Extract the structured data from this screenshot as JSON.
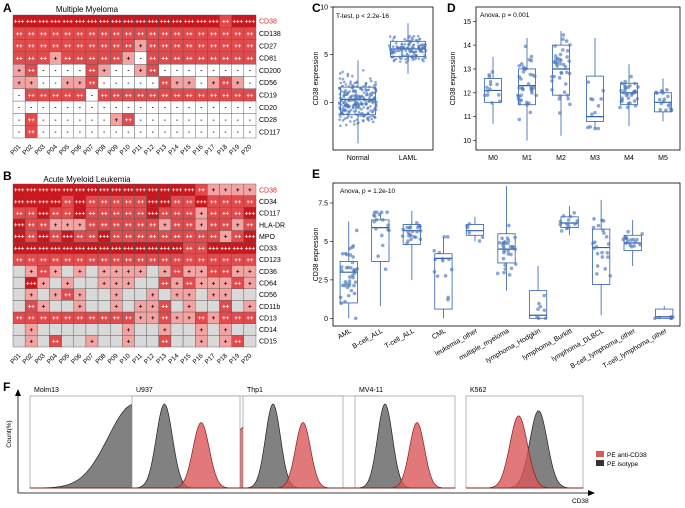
{
  "panels": {
    "A": {
      "letter": "A",
      "title": "Multiple Myeloma",
      "rows": [
        "CD38",
        "CD138",
        "CD27",
        "CD81",
        "CD200",
        "CD56",
        "CD19",
        "CD20",
        "CD28",
        "CD117"
      ],
      "highlight_row": "CD38",
      "cols": [
        "P01",
        "P02",
        "P03",
        "P04",
        "P05",
        "P06",
        "P07",
        "P08",
        "P09",
        "P10",
        "P11",
        "P12",
        "P13",
        "P14",
        "P15",
        "P16",
        "P17",
        "P18",
        "P19",
        "P20"
      ],
      "cells": [
        "+++ +++ +++ +++ +++ +++ +++ +++ +++ +++ +++ +++ +++ +++ +++ +++ +++ ++ +++ +++",
        "++ ++ ++ ++ ++ ++ ++ ++ ++ ++ ++ ++ ++ ++ ++ ++ ++ ++ ++ ++",
        "++ ++ ++ ++ ++ ++ ++ ++ ++ ++ + ++ ++ ++ ++ ++ ++ ++ ++ ++",
        "++ ++ ++ + ++ ++ ++ ++ ++ + - ++ ++ ++ ++ ++ ++ ++ ++ ++",
        "+ ++ - - - - ++ + - - + ++ - - - - - - - -",
        "+ + - - + + ++ - - - - - ++ + + - + ++ + -",
        "- ++ ++ ++ ++ ++ - ++ ++ ++ ++ ++ ++ ++ ++ ++ ++ ++ ++ ++",
        "- - - - - - - - - - - - - - - - - - - -",
        "- ++ - - - - - - + ++ - - - - - - - - - -",
        "- ++ - - - - - - - - - - - - - - - - - -"
      ]
    },
    "B": {
      "letter": "B",
      "title": "Acute Myeloid Leukemia",
      "rows": [
        "CD38",
        "CD34",
        "CD117",
        "HLA-DR",
        "MPO",
        "CD33",
        "CD123",
        "CD36",
        "CD64",
        "CD56",
        "CD11b",
        "CD13",
        "CD14",
        "CD15"
      ],
      "highlight_row": "CD38",
      "cols": [
        "P01",
        "P02",
        "P03",
        "P04",
        "P05",
        "P06",
        "P07",
        "P08",
        "P09",
        "P10",
        "P11",
        "P12",
        "P13",
        "P14",
        "P15",
        "P16",
        "P17",
        "P18",
        "P19",
        "P20"
      ],
      "cells": [
        "+++ +++ +++ +++ +++ +++ +++ +++ +++ +++ +++ +++ +++ +++ +++ ++ + + + +",
        "+++ +++ +++ +++ ++ +++ ++ ++ ++ ++ ++ +++ +++ ++ ++ +++ ++ ++ ++ ++",
        "++ ++ +++ ++ ++ +++ ++ ++ ++ ++ ++ +++ ++ ++ ++ + ++ ++ ++ +++",
        "+++ ++ ++ + + + ++ ++ ++ ++ ++ ++ + ++ ++ + ++ ++ + ++",
        "+++ ++ +++ ++ +++ ++ ++ +++ ++ ++ ++ ++ ++ ++ ++ ++ ++ + ++ +++",
        "+++ +++ +++ +++ +++ +++ +++ +++ +++ +++ +++ +++ +++ +++ ++ ++ +++ +++ +++ +++",
        "++ ++ ++ ++ ++ ++ ++ ++ ++ ++ ++ ++ ++ ++ ++ ++ ++ ++ ++ ++",
        "n + ++ + n + n + + + + n + ++ + + ++ ++ + +",
        "n +++ + n + n n + + + n n ++ + ++ + + + ++ +",
        "n + n + ++ + n n + n n + n + + n + + n n",
        "n ++ + n n + n n + n + + ++ n + n n ++ n +",
        "++ ++ ++ ++ ++ ++ ++ ++ ++ ++ + + ++ + + ++ + ++ ++ ++",
        "n + n n n n n n n + n n + n n + n + n n",
        "n + n ++ n n + n n + n n ++ n n + n + ++ n"
      ]
    },
    "C": {
      "letter": "C",
      "annotation": "T-test, p < 2.2e-16"
    },
    "D": {
      "letter": "D",
      "annotation": "Anova, p = 0.001"
    },
    "E": {
      "letter": "E",
      "annotation": "Anova, p = 1.2e-10"
    },
    "F": {
      "letter": "F",
      "ylabel": "Count(%)",
      "xlabel": "CD38",
      "cells": [
        "Molm13",
        "U937",
        "Thp1",
        "MV4-11",
        "K562"
      ],
      "legend": [
        "PE anti-CD38",
        "PE isotype"
      ]
    }
  },
  "chart_data": [
    {
      "type": "scatter",
      "panel": "C",
      "title": "",
      "xlabel": "",
      "ylabel": "CD38 expression",
      "categories": [
        "Normal",
        "LAML"
      ],
      "ylim": [
        -5,
        10
      ],
      "yticks": [
        0,
        5,
        10
      ],
      "summary": [
        {
          "name": "Normal",
          "median": 0.3,
          "q1": -1.3,
          "q3": 1.6,
          "min": -4.3,
          "max": 4.4
        },
        {
          "name": "LAML",
          "median": 5.6,
          "q1": 4.8,
          "q3": 6.4,
          "min": 3.0,
          "max": 8.3
        }
      ]
    },
    {
      "type": "box",
      "panel": "D",
      "xlabel": "",
      "ylabel": "CD38 expression",
      "categories": [
        "M0",
        "M1",
        "M2",
        "M3",
        "M4",
        "M5"
      ],
      "ylim": [
        9.6,
        15.6
      ],
      "yticks": [
        10,
        11,
        12,
        13,
        14,
        15
      ],
      "summary": [
        {
          "name": "M0",
          "median": 12.1,
          "q1": 11.6,
          "q3": 12.6,
          "min": 10.7,
          "max": 13.5
        },
        {
          "name": "M1",
          "median": 12.3,
          "q1": 11.5,
          "q3": 13.0,
          "min": 10.0,
          "max": 14.3
        },
        {
          "name": "M2",
          "median": 13.0,
          "q1": 11.9,
          "q3": 14.0,
          "min": 10.2,
          "max": 14.6
        },
        {
          "name": "M3",
          "median": 11.0,
          "q1": 10.8,
          "q3": 12.7,
          "min": 10.5,
          "max": 14.3
        },
        {
          "name": "M4",
          "median": 12.0,
          "q1": 11.5,
          "q3": 12.4,
          "min": 10.6,
          "max": 13.2
        },
        {
          "name": "M5",
          "median": 11.6,
          "q1": 11.2,
          "q3": 12.0,
          "min": 10.8,
          "max": 12.6
        }
      ]
    },
    {
      "type": "box",
      "panel": "E",
      "xlabel": "",
      "ylabel": "CD38 expression",
      "categories": [
        "AML",
        "B-cell_ALL",
        "T-cell_ALL",
        "CML",
        "leukemia_other",
        "multiple_myeloma",
        "lymphoma_Hodgkin",
        "lymphoma_Burkitt",
        "lymphoma_DLBCL",
        "B-cell_lymphoma_other",
        "T-cell_lymphoma_other"
      ],
      "ylim": [
        -0.5,
        8.8
      ],
      "yticks": [
        0,
        2.5,
        5,
        7.5
      ],
      "summary": [
        {
          "name": "AML",
          "median": 3.0,
          "q1": 1.0,
          "q3": 3.7,
          "min": 0,
          "max": 6.3
        },
        {
          "name": "B-cell_ALL",
          "median": 5.9,
          "q1": 3.7,
          "q3": 6.4,
          "min": 0.8,
          "max": 6.9
        },
        {
          "name": "T-cell_ALL",
          "median": 5.7,
          "q1": 4.8,
          "q3": 6.1,
          "min": 2.5,
          "max": 7.0
        },
        {
          "name": "CML",
          "median": 3.9,
          "q1": 0.6,
          "q3": 4.2,
          "min": 0,
          "max": 5.3
        },
        {
          "name": "leukemia_other",
          "median": 5.7,
          "q1": 5.4,
          "q3": 6.1,
          "min": 5.0,
          "max": 6.6
        },
        {
          "name": "multiple_myeloma",
          "median": 4.5,
          "q1": 3.6,
          "q3": 5.5,
          "min": 1.8,
          "max": 8.6
        },
        {
          "name": "lymphoma_Hodgkin",
          "median": 0.2,
          "q1": 0.0,
          "q3": 1.8,
          "min": 0,
          "max": 3.4
        },
        {
          "name": "lymphoma_Burkitt",
          "median": 6.2,
          "q1": 5.9,
          "q3": 6.6,
          "min": 5.4,
          "max": 7.3
        },
        {
          "name": "lymphoma_DLBCL",
          "median": 4.6,
          "q1": 2.2,
          "q3": 5.8,
          "min": 0.2,
          "max": 7.7
        },
        {
          "name": "B-cell_lymphoma_other",
          "median": 4.9,
          "q1": 4.4,
          "q3": 5.4,
          "min": 3.4,
          "max": 6.4
        },
        {
          "name": "T-cell_lymphoma_other",
          "median": 0.1,
          "q1": 0.0,
          "q3": 0.6,
          "min": 0,
          "max": 0.8
        }
      ]
    },
    {
      "type": "area",
      "panel": "F",
      "title": "",
      "xlabel": "CD38",
      "ylabel": "Count(%)",
      "series": [
        {
          "name": "Molm13",
          "isotype_peak": 0.3,
          "anti_peak": 0.64,
          "isotype_height": 1.0,
          "anti_height": 0.78
        },
        {
          "name": "U937",
          "isotype_peak": 0.3,
          "anti_peak": 0.64,
          "isotype_height": 1.0,
          "anti_height": 0.78
        },
        {
          "name": "Thp1",
          "isotype_peak": 0.3,
          "anti_peak": 0.6,
          "isotype_height": 1.0,
          "anti_height": 0.78
        },
        {
          "name": "MV4-11",
          "isotype_peak": 0.3,
          "anti_peak": 0.62,
          "isotype_height": 1.0,
          "anti_height": 0.78
        },
        {
          "name": "K562",
          "isotype_peak": 0.62,
          "anti_peak": 0.45,
          "isotype_height": 0.92,
          "anti_height": 0.86
        }
      ],
      "legend": [
        "PE anti-CD38",
        "PE isotype"
      ]
    }
  ],
  "colors": {
    "plus3": "#c8181e",
    "plus2": "#e04b4e",
    "plus1": "#f4a3a3",
    "minus": "#ffffff",
    "na": "#d9d9d9",
    "box": "#2f5fa8",
    "point": "#2f5fa8",
    "point_fill": "#4a76bd",
    "red_hist": "#d9585a",
    "gray_hist": "#555555"
  }
}
